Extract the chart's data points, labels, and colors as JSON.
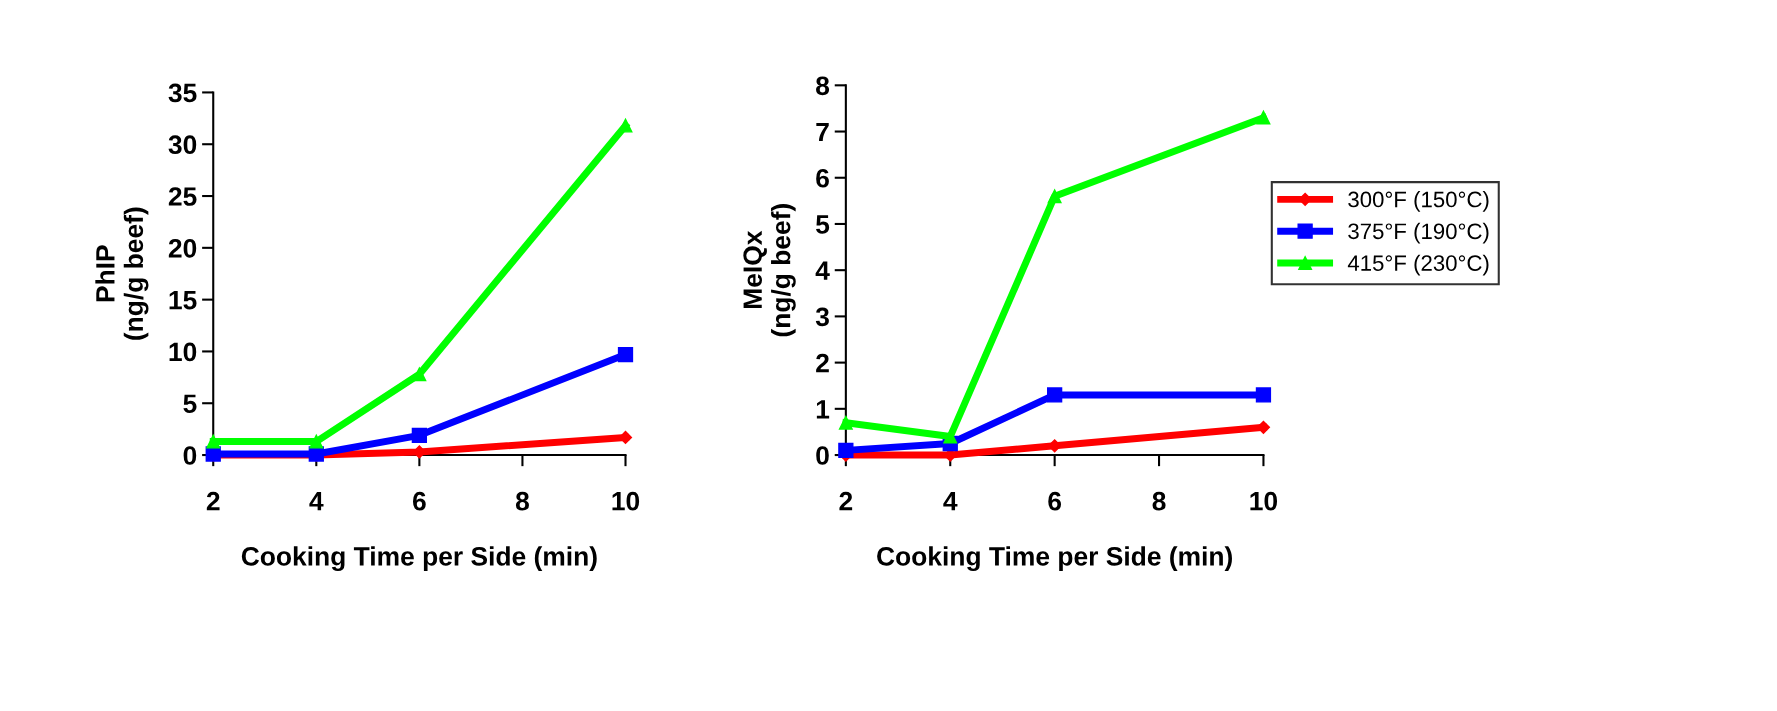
{
  "chart_data": [
    {
      "type": "line",
      "ylabel": "PhIP\n(ng/g beef)",
      "xlabel": "Cooking Time per Side (min)",
      "xlim": [
        2,
        10
      ],
      "xticks": [
        2,
        4,
        6,
        8,
        10
      ],
      "ylim": [
        0,
        35
      ],
      "yticks": [
        0,
        5,
        10,
        15,
        20,
        25,
        30,
        35
      ],
      "grid": false,
      "legend": false,
      "series": [
        {
          "color": "#ff0000",
          "marker": "diamond",
          "x": [
            2,
            4,
            6,
            10
          ],
          "values": [
            0,
            0,
            0.3,
            1.7
          ]
        },
        {
          "color": "#0000ff",
          "marker": "square",
          "x": [
            2,
            4,
            6,
            10
          ],
          "values": [
            0.1,
            0.1,
            1.9,
            9.7
          ]
        },
        {
          "color": "#00ff00",
          "marker": "triangle",
          "x": [
            2,
            4,
            6,
            10
          ],
          "values": [
            1.3,
            1.3,
            7.8,
            31.8
          ]
        }
      ]
    },
    {
      "type": "line",
      "ylabel": "MeIQx\n(ng/g beef)",
      "xlabel": "Cooking Time per Side (min)",
      "xlim": [
        2,
        10
      ],
      "xticks": [
        2,
        4,
        6,
        8,
        10
      ],
      "ylim": [
        0,
        8
      ],
      "yticks": [
        0,
        1,
        2,
        3,
        4,
        5,
        6,
        7,
        8
      ],
      "grid": false,
      "legend": "right",
      "series": [
        {
          "name": "300°F (150°C)",
          "color": "#ff0000",
          "marker": "diamond",
          "x": [
            2,
            4,
            6,
            10
          ],
          "values": [
            0,
            0,
            0.2,
            0.6
          ]
        },
        {
          "name": "375°F (190°C)",
          "color": "#0000ff",
          "marker": "square",
          "x": [
            2,
            4,
            6,
            10
          ],
          "values": [
            0.1,
            0.25,
            1.3,
            1.3
          ]
        },
        {
          "name": "415°F (230°C)",
          "color": "#00ff00",
          "marker": "triangle",
          "x": [
            2,
            4,
            6,
            10
          ],
          "values": [
            0.7,
            0.4,
            5.6,
            7.3
          ]
        }
      ]
    }
  ]
}
